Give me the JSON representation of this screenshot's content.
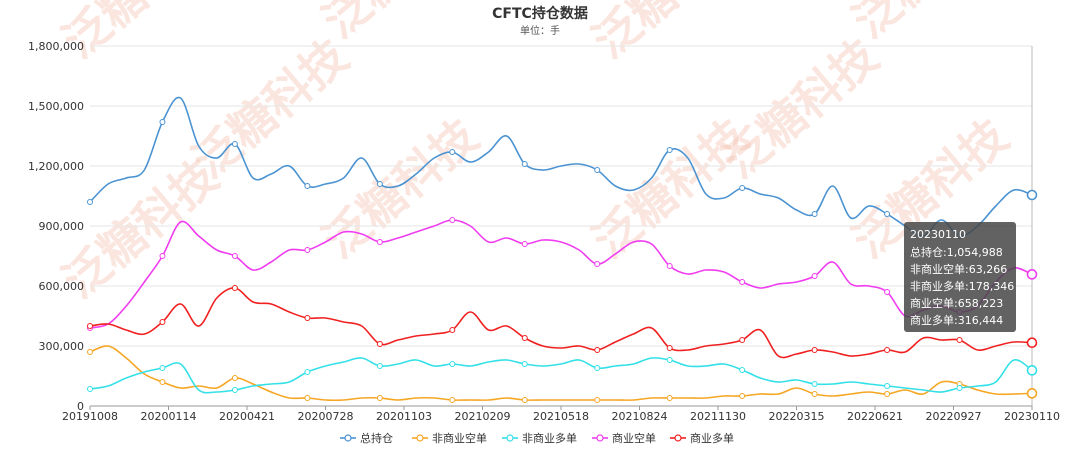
{
  "chart_data": {
    "type": "line",
    "title": "CFTC持仓数据",
    "subtitle": "单位：手",
    "xlabel": "",
    "ylabel": "",
    "ylim": [
      0,
      1800000
    ],
    "yticks": [
      "0",
      "300,000",
      "600,000",
      "900,000",
      "1,200,000",
      "1,500,000",
      "1,800,000"
    ],
    "xticks": [
      "20191008",
      "20200114",
      "20200421",
      "20200728",
      "20201103",
      "20210209",
      "20210518",
      "20210824",
      "20211130",
      "20220315",
      "20220621",
      "20220927",
      "20230110"
    ],
    "grid": true,
    "legend_position": "bottom",
    "series": [
      {
        "name": "总持仓",
        "color": "#4b93d1",
        "values": [
          1020000,
          1110000,
          1140000,
          1180000,
          1420000,
          1540000,
          1300000,
          1240000,
          1310000,
          1140000,
          1160000,
          1200000,
          1100000,
          1110000,
          1140000,
          1240000,
          1110000,
          1100000,
          1160000,
          1240000,
          1270000,
          1220000,
          1270000,
          1350000,
          1210000,
          1180000,
          1200000,
          1210000,
          1180000,
          1100000,
          1080000,
          1140000,
          1280000,
          1240000,
          1060000,
          1040000,
          1090000,
          1060000,
          1040000,
          980000,
          960000,
          1100000,
          940000,
          1000000,
          960000,
          900000,
          850000,
          930000,
          850000,
          900000,
          1000000,
          1080000,
          1054988
        ]
      },
      {
        "name": "非商业空单",
        "color": "#f5a623",
        "values": [
          270000,
          300000,
          240000,
          160000,
          120000,
          90000,
          100000,
          90000,
          140000,
          110000,
          70000,
          40000,
          40000,
          30000,
          30000,
          40000,
          40000,
          30000,
          40000,
          40000,
          30000,
          30000,
          30000,
          40000,
          30000,
          30000,
          30000,
          30000,
          30000,
          30000,
          30000,
          40000,
          40000,
          40000,
          40000,
          50000,
          50000,
          60000,
          60000,
          90000,
          60000,
          50000,
          60000,
          70000,
          60000,
          80000,
          60000,
          120000,
          110000,
          80000,
          60000,
          60000,
          63266
        ]
      },
      {
        "name": "非商业多单",
        "color": "#33e0e8",
        "values": [
          85000,
          100000,
          140000,
          170000,
          190000,
          210000,
          80000,
          70000,
          80000,
          100000,
          110000,
          120000,
          170000,
          200000,
          220000,
          240000,
          200000,
          210000,
          230000,
          200000,
          210000,
          200000,
          220000,
          230000,
          210000,
          200000,
          210000,
          230000,
          190000,
          200000,
          210000,
          240000,
          230000,
          200000,
          200000,
          210000,
          180000,
          140000,
          120000,
          130000,
          110000,
          110000,
          120000,
          110000,
          100000,
          90000,
          80000,
          70000,
          90000,
          100000,
          120000,
          230000,
          178346
        ]
      },
      {
        "name": "商业空单",
        "color": "#f03cf0",
        "values": [
          390000,
          410000,
          500000,
          620000,
          750000,
          920000,
          850000,
          780000,
          750000,
          680000,
          720000,
          780000,
          780000,
          820000,
          870000,
          860000,
          820000,
          840000,
          870000,
          900000,
          930000,
          900000,
          820000,
          840000,
          810000,
          830000,
          820000,
          780000,
          710000,
          760000,
          820000,
          810000,
          700000,
          660000,
          680000,
          670000,
          620000,
          590000,
          610000,
          620000,
          650000,
          720000,
          610000,
          600000,
          570000,
          450000,
          480000,
          500000,
          470000,
          500000,
          620000,
          690000,
          658223
        ]
      },
      {
        "name": "商业多单",
        "color": "#f02020",
        "values": [
          400000,
          410000,
          380000,
          360000,
          420000,
          510000,
          400000,
          540000,
          590000,
          520000,
          510000,
          470000,
          440000,
          440000,
          420000,
          400000,
          310000,
          330000,
          350000,
          360000,
          380000,
          470000,
          380000,
          400000,
          340000,
          300000,
          290000,
          300000,
          280000,
          320000,
          360000,
          390000,
          290000,
          280000,
          300000,
          310000,
          330000,
          380000,
          250000,
          260000,
          280000,
          270000,
          250000,
          260000,
          280000,
          270000,
          340000,
          330000,
          330000,
          280000,
          300000,
          320000,
          316444
        ]
      }
    ]
  },
  "tooltip": {
    "date": "20230110",
    "lines": [
      "总持仓:1,054,988",
      "非商业空单:63,266",
      "非商业多单:178,346",
      "商业空单:658,223",
      "商业多单:316,444"
    ]
  },
  "watermark": "泛糖科技"
}
